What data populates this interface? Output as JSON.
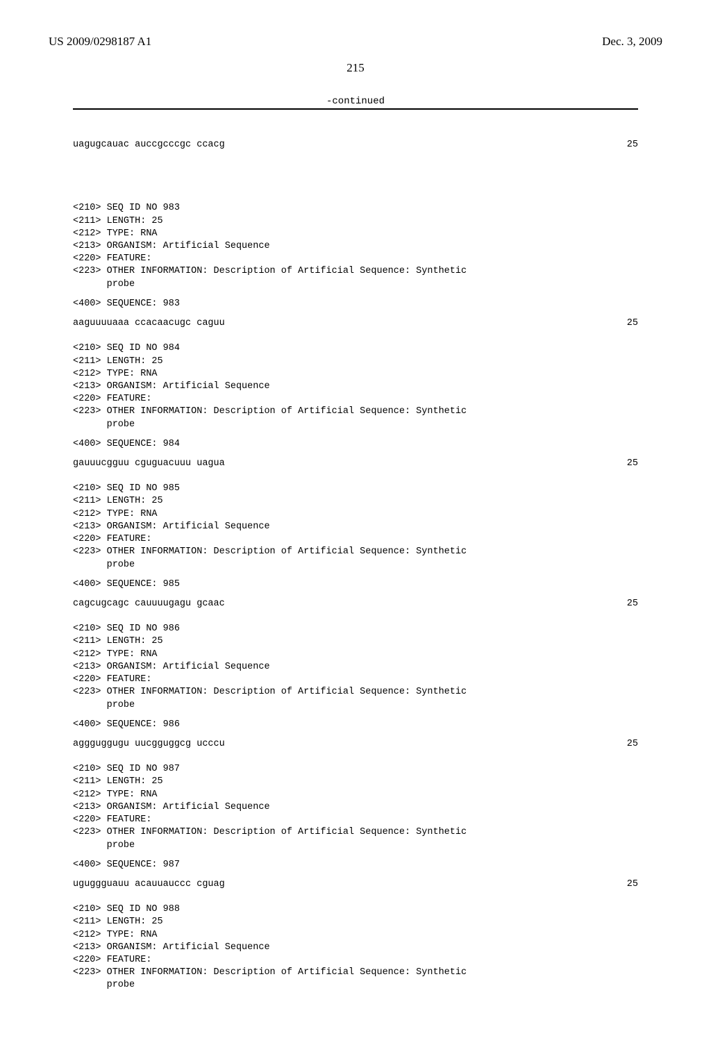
{
  "header": {
    "doc_number": "US 2009/0298187 A1",
    "doc_date": "Dec. 3, 2009",
    "page_number": "215",
    "continued_label": "-continued"
  },
  "font": {
    "header_fontsize": 17,
    "mono_fontsize": 13.5,
    "mono_family": "Courier New",
    "serif_family": "Times New Roman"
  },
  "colors": {
    "text": "#000000",
    "background": "#ffffff",
    "rule": "#000000"
  },
  "first_seq": {
    "sequence": "uagugcauac auccgcccgc ccacg",
    "length_num": "25"
  },
  "entries": [
    {
      "seq_id": "<210> SEQ ID NO 983",
      "length": "<211> LENGTH: 25",
      "type": "<212> TYPE: RNA",
      "organism": "<213> ORGANISM: Artificial Sequence",
      "feature": "<220> FEATURE:",
      "other1": "<223> OTHER INFORMATION: Description of Artificial Sequence: Synthetic",
      "other2": "      probe",
      "seq_header": "<400> SEQUENCE: 983",
      "sequence": "aaguuuuaaa ccacaacugc caguu",
      "length_num": "25"
    },
    {
      "seq_id": "<210> SEQ ID NO 984",
      "length": "<211> LENGTH: 25",
      "type": "<212> TYPE: RNA",
      "organism": "<213> ORGANISM: Artificial Sequence",
      "feature": "<220> FEATURE:",
      "other1": "<223> OTHER INFORMATION: Description of Artificial Sequence: Synthetic",
      "other2": "      probe",
      "seq_header": "<400> SEQUENCE: 984",
      "sequence": "gauuucgguu cguguacuuu uagua",
      "length_num": "25"
    },
    {
      "seq_id": "<210> SEQ ID NO 985",
      "length": "<211> LENGTH: 25",
      "type": "<212> TYPE: RNA",
      "organism": "<213> ORGANISM: Artificial Sequence",
      "feature": "<220> FEATURE:",
      "other1": "<223> OTHER INFORMATION: Description of Artificial Sequence: Synthetic",
      "other2": "      probe",
      "seq_header": "<400> SEQUENCE: 985",
      "sequence": "cagcugcagc cauuuugagu gcaac",
      "length_num": "25"
    },
    {
      "seq_id": "<210> SEQ ID NO 986",
      "length": "<211> LENGTH: 25",
      "type": "<212> TYPE: RNA",
      "organism": "<213> ORGANISM: Artificial Sequence",
      "feature": "<220> FEATURE:",
      "other1": "<223> OTHER INFORMATION: Description of Artificial Sequence: Synthetic",
      "other2": "      probe",
      "seq_header": "<400> SEQUENCE: 986",
      "sequence": "aggguggugu uucgguggcg ucccu",
      "length_num": "25"
    },
    {
      "seq_id": "<210> SEQ ID NO 987",
      "length": "<211> LENGTH: 25",
      "type": "<212> TYPE: RNA",
      "organism": "<213> ORGANISM: Artificial Sequence",
      "feature": "<220> FEATURE:",
      "other1": "<223> OTHER INFORMATION: Description of Artificial Sequence: Synthetic",
      "other2": "      probe",
      "seq_header": "<400> SEQUENCE: 987",
      "sequence": "uguggguauu acauuauccc cguag",
      "length_num": "25"
    },
    {
      "seq_id": "<210> SEQ ID NO 988",
      "length": "<211> LENGTH: 25",
      "type": "<212> TYPE: RNA",
      "organism": "<213> ORGANISM: Artificial Sequence",
      "feature": "<220> FEATURE:",
      "other1": "<223> OTHER INFORMATION: Description of Artificial Sequence: Synthetic",
      "other2": "      probe",
      "seq_header": "",
      "sequence": "",
      "length_num": ""
    }
  ]
}
